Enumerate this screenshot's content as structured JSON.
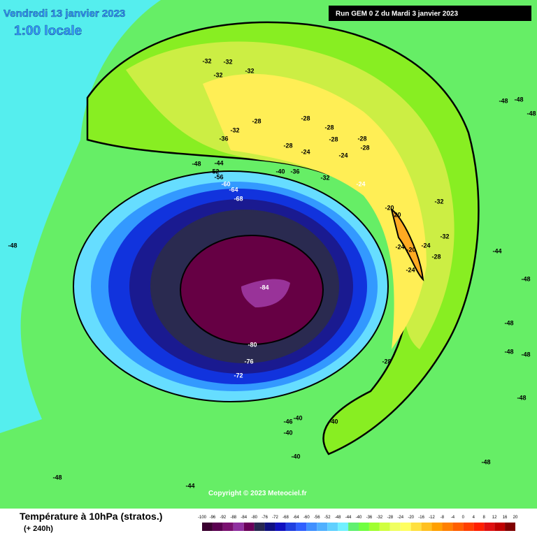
{
  "header": {
    "date": "Vendredi 13 janvier 2023",
    "time": "1:00 locale",
    "run": "Run GEM 0 Z du Mardi 3 janvier 2023"
  },
  "map": {
    "contour_labels": [
      -32,
      -32,
      -32,
      -32,
      -28,
      -28,
      -28,
      -36,
      -32,
      -28,
      -24,
      -28,
      -28,
      -28,
      -24,
      -24,
      -32,
      -32,
      -40,
      -36,
      -48,
      -44,
      -52,
      -56,
      -60,
      -64,
      -68,
      -20,
      -20,
      -32,
      -24,
      -20,
      -24,
      -28,
      -24,
      -44,
      -48,
      -48,
      -48,
      -48,
      -48,
      -48,
      -48,
      -48,
      -48,
      -48,
      -84,
      -80,
      -76,
      -72,
      -28,
      -40,
      -40,
      -46,
      -40,
      -40,
      -48,
      -44
    ],
    "copyright": "Copyright © 2023 Meteociel.fr"
  },
  "footer": {
    "title": "Température à 10hPa (stratos.)",
    "lead": "(+ 240h)"
  },
  "scale": {
    "ticks": [
      -100,
      -96,
      -92,
      -88,
      -84,
      -80,
      -76,
      -72,
      -68,
      -64,
      -60,
      -56,
      -52,
      -48,
      -44,
      -40,
      -36,
      -32,
      -28,
      -24,
      -20,
      -16,
      -12,
      -8,
      -4,
      0,
      4,
      8,
      12,
      16,
      20
    ],
    "colors": [
      "#3a0030",
      "#5a0050",
      "#7a1070",
      "#9030a0",
      "#6a005a",
      "#282850",
      "#101080",
      "#1010c0",
      "#2040e0",
      "#3060ff",
      "#4090ff",
      "#50b0ff",
      "#60d0ff",
      "#70f0ff",
      "#60f070",
      "#70ff40",
      "#a0ff30",
      "#d0ff40",
      "#f0ff60",
      "#ffff60",
      "#ffe040",
      "#ffc020",
      "#ffa000",
      "#ff8000",
      "#ff6000",
      "#ff4000",
      "#ff2000",
      "#e01010",
      "#c00000",
      "#800000"
    ]
  }
}
